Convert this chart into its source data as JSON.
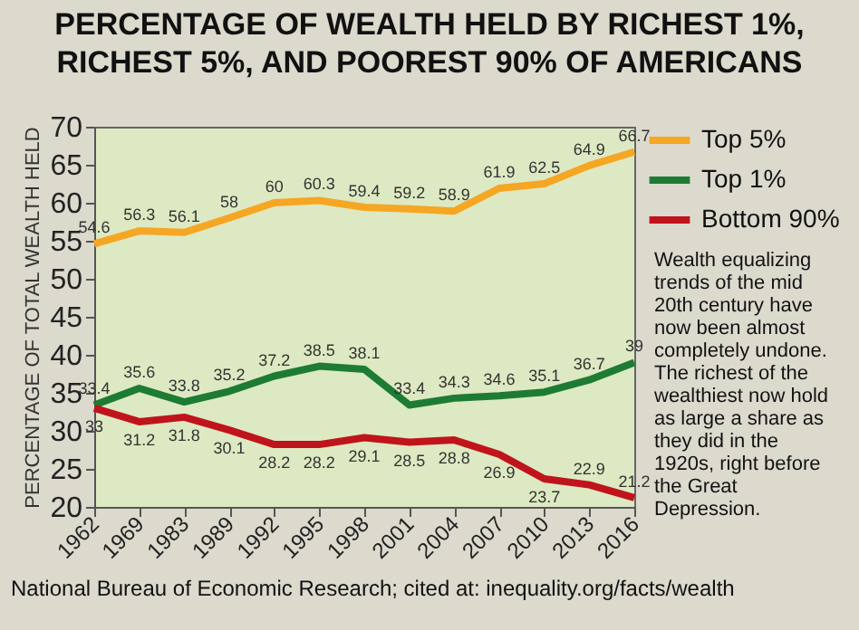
{
  "chart_data": {
    "type": "line",
    "title": "PERCENTAGE OF WEALTH HELD BY RICHEST 1%, RICHEST 5%, AND POOREST 90% OF AMERICANS",
    "ylabel": "PERCENTAGE OF TOTAL WEALTH HELD",
    "categories": [
      "1962",
      "1969",
      "1983",
      "1989",
      "1992",
      "1995",
      "1998",
      "2001",
      "2004",
      "2007",
      "2010",
      "2013",
      "2016"
    ],
    "series": [
      {
        "name": "Top 5%",
        "color": "#f5a623",
        "values": [
          54.6,
          56.3,
          56.1,
          58,
          60,
          60.3,
          59.4,
          59.2,
          58.9,
          61.9,
          62.5,
          64.9,
          66.7
        ]
      },
      {
        "name": "Top 1%",
        "color": "#1e7b34",
        "values": [
          33.4,
          35.6,
          33.8,
          35.2,
          37.2,
          38.5,
          38.1,
          33.4,
          34.3,
          34.6,
          35.1,
          36.7,
          39
        ]
      },
      {
        "name": "Bottom 90%",
        "color": "#c0141c",
        "values": [
          33,
          31.2,
          31.8,
          30.1,
          28.2,
          28.2,
          29.1,
          28.5,
          28.8,
          26.9,
          23.7,
          22.9,
          21.2
        ]
      }
    ],
    "ylim": [
      20,
      70
    ],
    "yticks": [
      20,
      25,
      30,
      35,
      40,
      45,
      50,
      55,
      60,
      65,
      70
    ],
    "grid": false,
    "legend": "top right",
    "data_labels": true,
    "marker": "none",
    "line_style": "solid",
    "annotations": [
      "Wealth equalizing trends of the mid 20th century have now been almost completely undone. The richest of the wealthiest now hold as large a share as they did in the 1920s, right before the Great Depression.",
      "National Bureau of Economic Research; cited at: inequality.org/facts/wealth"
    ]
  }
}
